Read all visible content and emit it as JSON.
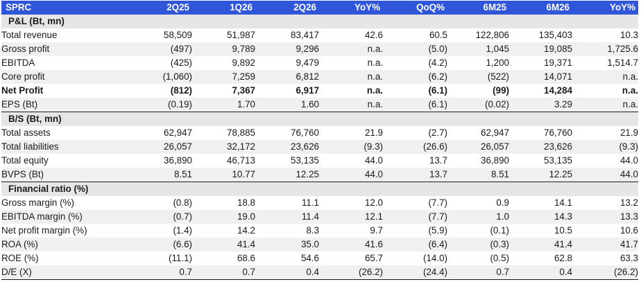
{
  "header": {
    "label": "SPRC",
    "columns": [
      "2Q25",
      "1Q26",
      "2Q26",
      "YoY%",
      "QoQ%",
      "6M25",
      "6M26",
      "YoY%"
    ]
  },
  "sections": [
    {
      "title": "P&L (Bt, mn)",
      "rows": [
        {
          "label": "Total revenue",
          "values": [
            "58,509",
            "51,987",
            "83,417",
            "42.6",
            "60.5",
            "122,806",
            "135,403",
            "10.3"
          ]
        },
        {
          "label": "Gross profit",
          "values": [
            "(497)",
            "9,789",
            "9,296",
            "n.a.",
            "(5.0)",
            "1,045",
            "19,085",
            "1,725.6"
          ]
        },
        {
          "label": "EBITDA",
          "values": [
            "(425)",
            "9,892",
            "9,479",
            "n.a.",
            "(4.2)",
            "1,200",
            "19,371",
            "1,514.7"
          ]
        },
        {
          "label": "Core profit",
          "values": [
            "(1,060)",
            "7,259",
            "6,812",
            "n.a.",
            "(6.2)",
            "(522)",
            "14,071",
            "n.a."
          ]
        },
        {
          "label": "Net Profit",
          "values": [
            "(812)",
            "7,367",
            "6,917",
            "n.a.",
            "(6.1)",
            "(99)",
            "14,284",
            "n.a."
          ],
          "bold": true
        },
        {
          "label": "EPS (Bt)",
          "values": [
            "(0.19)",
            "1.70",
            "1.60",
            "n.a.",
            "(6.1)",
            "(0.02)",
            "3.29",
            "n.a."
          ]
        }
      ]
    },
    {
      "title": "B/S (Bt, mn)",
      "rows": [
        {
          "label": "Total assets",
          "values": [
            "62,947",
            "78,885",
            "76,760",
            "21.9",
            "(2.7)",
            "62,947",
            "76,760",
            "21.9"
          ]
        },
        {
          "label": "Total liabilities",
          "values": [
            "26,057",
            "32,172",
            "23,626",
            "(9.3)",
            "(26.6)",
            "26,057",
            "23,626",
            "(9.3)"
          ]
        },
        {
          "label": "Total equity",
          "values": [
            "36,890",
            "46,713",
            "53,135",
            "44.0",
            "13.7",
            "36,890",
            "53,135",
            "44.0"
          ]
        },
        {
          "label": "BVPS (Bt)",
          "values": [
            "8.51",
            "10.77",
            "12.25",
            "44.0",
            "13.7",
            "8.51",
            "12.25",
            "44.0"
          ]
        }
      ]
    },
    {
      "title": "Financial ratio (%)",
      "rows": [
        {
          "label": "Gross margin (%)",
          "values": [
            "(0.8)",
            "18.8",
            "11.1",
            "12.0",
            "(7.7)",
            "0.9",
            "14.1",
            "13.2"
          ]
        },
        {
          "label": "EBITDA margin (%)",
          "values": [
            "(0.7)",
            "19.0",
            "11.4",
            "12.1",
            "(7.7)",
            "1.0",
            "14.3",
            "13.3"
          ]
        },
        {
          "label": "Net profit margin (%)",
          "values": [
            "(1.4)",
            "14.2",
            "8.3",
            "9.7",
            "(5.9)",
            "(0.1)",
            "10.5",
            "10.6"
          ]
        },
        {
          "label": "ROA (%)",
          "values": [
            "(6.6)",
            "41.4",
            "35.0",
            "41.6",
            "(6.4)",
            "(0.3)",
            "41.4",
            "41.7"
          ]
        },
        {
          "label": "ROE (%)",
          "values": [
            "(11.1)",
            "68.6",
            "54.6",
            "65.7",
            "(14.0)",
            "(0.5)",
            "62.8",
            "63.3"
          ]
        },
        {
          "label": "D/E (X)",
          "values": [
            "0.7",
            "0.7",
            "0.4",
            "(26.2)",
            "(24.4)",
            "0.7",
            "0.4",
            "(26.2)"
          ]
        }
      ]
    }
  ],
  "colors": {
    "header_bg": "#2f56d9",
    "header_text": "#ffffff",
    "section_bg": "#e6e6e6",
    "shade_bg": "#f0f0f0"
  }
}
